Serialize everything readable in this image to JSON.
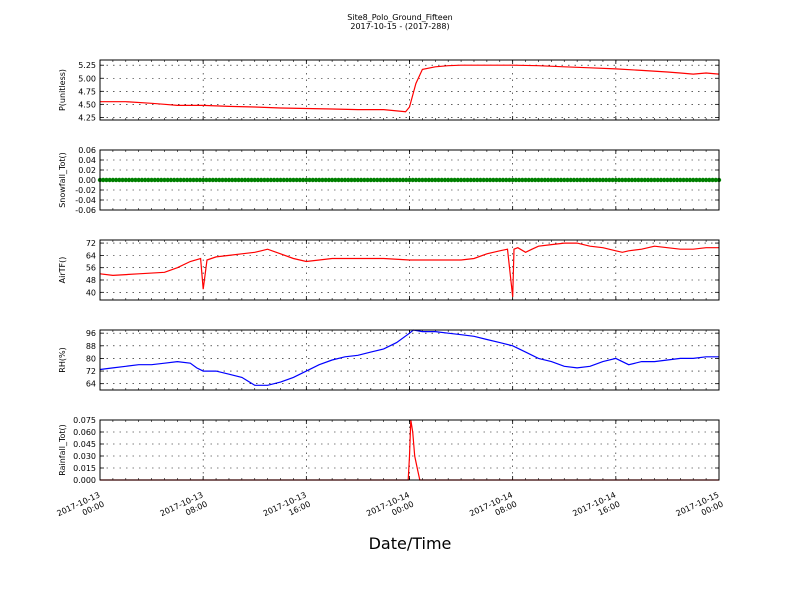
{
  "figure": {
    "title": "Site8_Polo_Ground_Fifteen",
    "subtitle": "2017-10-15 - (2017-288)",
    "xlabel": "Date/Time"
  },
  "chart_data": [
    {
      "type": "line",
      "ylabel": "P(unitless)",
      "color": "#ff0000",
      "ylim": [
        4.2,
        5.35
      ],
      "yticks": [
        4.25,
        4.5,
        4.75,
        5.0,
        5.25
      ],
      "ytick_labels": [
        "4.25",
        "4.50",
        "4.75",
        "5.00",
        "5.25"
      ],
      "xticks": [
        "2017-10-13 00:00",
        "2017-10-13 08:00",
        "2017-10-13 16:00",
        "2017-10-14 00:00",
        "2017-10-14 08:00",
        "2017-10-14 16:00",
        "2017-10-15 00:00"
      ],
      "grid": true,
      "x_hours": [
        0,
        2,
        4,
        5,
        6,
        7,
        8,
        10,
        12,
        14,
        16,
        18,
        20,
        22,
        23.7,
        24,
        24.5,
        25,
        26,
        27,
        28,
        30,
        32,
        34,
        36,
        38,
        40,
        42,
        44,
        45,
        46,
        47,
        48
      ],
      "values": [
        4.55,
        4.55,
        4.52,
        4.5,
        4.48,
        4.48,
        4.48,
        4.46,
        4.45,
        4.43,
        4.42,
        4.41,
        4.4,
        4.4,
        4.36,
        4.45,
        4.9,
        5.17,
        5.22,
        5.24,
        5.25,
        5.25,
        5.25,
        5.24,
        5.22,
        5.2,
        5.18,
        5.15,
        5.12,
        5.1,
        5.08,
        5.1,
        5.08
      ]
    },
    {
      "type": "line",
      "ylabel": "Snowfall_Tot()",
      "color": "#008000",
      "ylim": [
        -0.06,
        0.06
      ],
      "yticks": [
        -0.06,
        -0.04,
        -0.02,
        0.0,
        0.02,
        0.04,
        0.06
      ],
      "ytick_labels": [
        "-0.06",
        "-0.04",
        "-0.02",
        "0.00",
        "0.02",
        "0.04",
        "0.06"
      ],
      "xticks": [
        "2017-10-13 00:00",
        "2017-10-13 08:00",
        "2017-10-13 16:00",
        "2017-10-14 00:00",
        "2017-10-14 08:00",
        "2017-10-14 16:00",
        "2017-10-15 00:00"
      ],
      "grid": true,
      "markers": true,
      "x_hours": [
        0,
        48
      ],
      "values": [
        0,
        0
      ]
    },
    {
      "type": "line",
      "ylabel": "AirTF()",
      "color": "#ff0000",
      "ylim": [
        35,
        74
      ],
      "yticks": [
        40,
        48,
        56,
        64,
        72
      ],
      "ytick_labels": [
        "40",
        "48",
        "56",
        "64",
        "72"
      ],
      "xticks": [
        "2017-10-13 00:00",
        "2017-10-13 08:00",
        "2017-10-13 16:00",
        "2017-10-14 00:00",
        "2017-10-14 08:00",
        "2017-10-14 16:00",
        "2017-10-15 00:00"
      ],
      "grid": true,
      "x_hours": [
        0,
        1,
        3,
        5,
        6,
        7,
        7.8,
        8.0,
        8.3,
        9,
        10,
        11,
        12,
        12.5,
        13,
        14,
        15,
        16,
        17,
        18,
        20,
        22,
        24,
        26,
        28,
        29,
        30,
        31,
        31.6,
        32,
        32.1,
        32.4,
        33,
        33.5,
        34,
        35,
        36,
        37,
        38,
        39,
        40,
        40.5,
        41,
        42,
        43,
        44,
        45,
        46,
        47,
        48
      ],
      "values": [
        52,
        51,
        52,
        53,
        56,
        60,
        62,
        42,
        61,
        63,
        64,
        65,
        66,
        67,
        68,
        65,
        62,
        60,
        61,
        62,
        62,
        62,
        61,
        61,
        61,
        62,
        65,
        67,
        68,
        37,
        68,
        69,
        66,
        68,
        70,
        71,
        72,
        72,
        70,
        69,
        67,
        66,
        67,
        68,
        70,
        69,
        68,
        68,
        69,
        69
      ]
    },
    {
      "type": "line",
      "ylabel": "RH(%)",
      "color": "#0000ff",
      "ylim": [
        60,
        98
      ],
      "yticks": [
        64,
        72,
        80,
        88,
        96
      ],
      "ytick_labels": [
        "64",
        "72",
        "80",
        "88",
        "96"
      ],
      "xticks": [
        "2017-10-13 00:00",
        "2017-10-13 08:00",
        "2017-10-13 16:00",
        "2017-10-14 00:00",
        "2017-10-14 08:00",
        "2017-10-14 16:00",
        "2017-10-15 00:00"
      ],
      "grid": true,
      "x_hours": [
        0,
        1,
        2,
        3,
        4,
        5,
        6,
        7,
        7.5,
        8,
        9,
        10,
        11,
        12,
        13,
        14,
        15,
        16,
        17,
        18,
        19,
        20,
        21,
        22,
        23,
        24,
        24.3,
        25,
        26,
        27,
        28,
        29,
        30,
        31,
        32,
        33,
        34,
        35,
        36,
        37,
        38,
        39,
        40,
        41,
        42,
        43,
        44,
        45,
        46,
        47,
        48
      ],
      "values": [
        73,
        74,
        75,
        76,
        76,
        77,
        78,
        77,
        74,
        72,
        72,
        70,
        68,
        63,
        63,
        65,
        68,
        72,
        76,
        79,
        81,
        82,
        84,
        86,
        90,
        96,
        98,
        97,
        97,
        96,
        95,
        94,
        92,
        90,
        88,
        84,
        80,
        78,
        75,
        74,
        75,
        78,
        80,
        76,
        78,
        78,
        79,
        80,
        80,
        81,
        81
      ]
    },
    {
      "type": "line",
      "ylabel": "Rainfall_Tot()",
      "color": "#ff0000",
      "ylim": [
        0,
        0.075
      ],
      "yticks": [
        0.0,
        0.015,
        0.03,
        0.045,
        0.06,
        0.075
      ],
      "ytick_labels": [
        "0.000",
        "0.015",
        "0.030",
        "0.045",
        "0.060",
        "0.075"
      ],
      "xticks": [
        "2017-10-13 00:00",
        "2017-10-13 08:00",
        "2017-10-13 16:00",
        "2017-10-14 00:00",
        "2017-10-14 08:00",
        "2017-10-14 16:00",
        "2017-10-15 00:00"
      ],
      "grid": true,
      "x_hours": [
        0,
        23.9,
        24.0,
        24.1,
        24.25,
        24.4,
        24.6,
        24.8,
        48
      ],
      "values": [
        0,
        0,
        0.03,
        0.075,
        0.06,
        0.03,
        0.015,
        0,
        0
      ]
    }
  ]
}
